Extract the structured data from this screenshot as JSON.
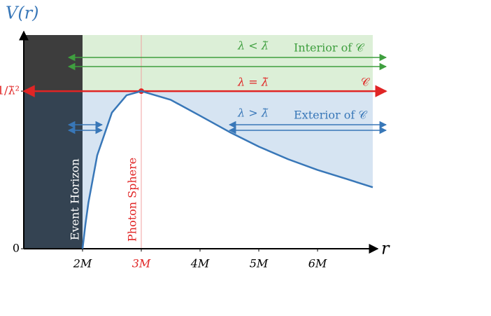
{
  "chart_data": {
    "type": "line",
    "y_label": "V(r)",
    "x_label": "r",
    "x": [
      2,
      2.05,
      2.1,
      2.25,
      2.5,
      2.75,
      3,
      3.5,
      4,
      4.5,
      5,
      5.5,
      6,
      6.5,
      6.94
    ],
    "values": [
      0,
      0.157,
      0.292,
      0.593,
      0.864,
      0.974,
      1,
      0.945,
      0.844,
      0.741,
      0.648,
      0.568,
      0.5,
      0.442,
      0.39
    ],
    "color": "#3877b8",
    "xlim": [
      1,
      7
    ],
    "ylim": [
      0,
      1.356
    ],
    "xticks": [
      {
        "value": 2,
        "label": "2M"
      },
      {
        "value": 3,
        "label": "3M"
      },
      {
        "value": 4,
        "label": "4M"
      },
      {
        "value": 5,
        "label": "5M"
      },
      {
        "value": 6,
        "label": "6M"
      }
    ],
    "yticks": [
      {
        "value": 0,
        "label": "0"
      },
      {
        "value": 1,
        "label": "1/λ̃²"
      }
    ],
    "event_horizon": {
      "label": "Event Horizon",
      "x": 2
    },
    "photon_sphere": {
      "label": "Photon Sphere",
      "x": 3
    },
    "bands": [
      {
        "relation": "λ < λ̃",
        "label": "Interior of 𝒞",
        "color": "#3f9f3f"
      },
      {
        "relation": "λ = λ̃",
        "label": "𝒞",
        "color": "#e02525"
      },
      {
        "relation": "λ > λ̃",
        "label": "Exterior of 𝒞",
        "color": "#3877b8"
      }
    ]
  }
}
